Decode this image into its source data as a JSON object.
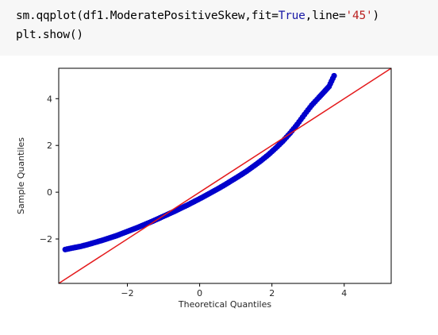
{
  "code_cell": {
    "line1": {
      "prefix": "sm.qqplot(df1.ModeratePositiveSkew,fit=",
      "fit_value": "True",
      "mid": ",line=",
      "line_value": "'45'",
      "suffix": ")"
    },
    "line2": "plt.show()"
  },
  "colors": {
    "code_background": "#f7f7f7",
    "keyword": "#1a1aa6",
    "string": "#ba2121",
    "points": "#0000cc",
    "reference_line": "#e41a1c"
  },
  "chart_data": {
    "type": "scatter",
    "xlabel": "Theoretical Quantiles",
    "ylabel": "Sample Quantiles",
    "xlim": [
      -3.9,
      5.3
    ],
    "ylim": [
      -3.9,
      5.3
    ],
    "xticks": [
      -2,
      0,
      2,
      4
    ],
    "yticks": [
      -2,
      0,
      2,
      4
    ],
    "grid": false,
    "reference_line": {
      "type": "45-degree",
      "slope": 1,
      "intercept": 0
    },
    "points": [
      [
        -3.72,
        -2.45
      ],
      [
        -3.5,
        -2.38
      ],
      [
        -3.3,
        -2.32
      ],
      [
        -3.1,
        -2.24
      ],
      [
        -2.9,
        -2.15
      ],
      [
        -2.7,
        -2.06
      ],
      [
        -2.5,
        -1.96
      ],
      [
        -2.3,
        -1.86
      ],
      [
        -2.1,
        -1.74
      ],
      [
        -1.9,
        -1.62
      ],
      [
        -1.7,
        -1.5
      ],
      [
        -1.5,
        -1.37
      ],
      [
        -1.3,
        -1.24
      ],
      [
        -1.1,
        -1.1
      ],
      [
        -0.9,
        -0.96
      ],
      [
        -0.7,
        -0.82
      ],
      [
        -0.5,
        -0.67
      ],
      [
        -0.3,
        -0.52
      ],
      [
        -0.1,
        -0.36
      ],
      [
        0.1,
        -0.2
      ],
      [
        0.3,
        -0.03
      ],
      [
        0.5,
        0.14
      ],
      [
        0.7,
        0.32
      ],
      [
        0.9,
        0.51
      ],
      [
        1.1,
        0.7
      ],
      [
        1.3,
        0.9
      ],
      [
        1.5,
        1.12
      ],
      [
        1.7,
        1.35
      ],
      [
        1.9,
        1.6
      ],
      [
        2.1,
        1.88
      ],
      [
        2.3,
        2.18
      ],
      [
        2.5,
        2.52
      ],
      [
        2.7,
        2.9
      ],
      [
        2.9,
        3.32
      ],
      [
        3.1,
        3.72
      ],
      [
        3.3,
        4.05
      ],
      [
        3.45,
        4.3
      ],
      [
        3.58,
        4.52
      ],
      [
        3.72,
        4.98
      ]
    ]
  }
}
